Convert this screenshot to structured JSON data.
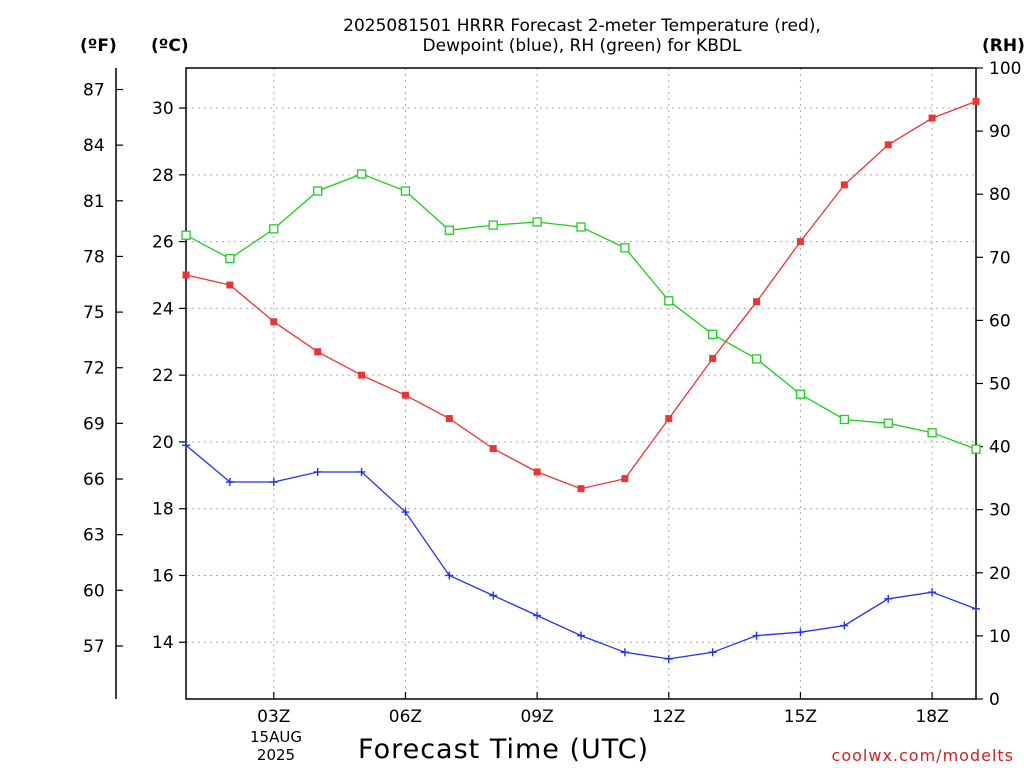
{
  "chart_data": {
    "type": "line",
    "title_line1": "2025081501 HRRR Forecast 2-meter Temperature (red),",
    "title_line2": "Dewpoint (blue), RH (green) for KBDL",
    "xlabel": "Forecast Time (UTC)",
    "date_day": "15AUG",
    "date_year": "2025",
    "credit": "coolwx.com/modelts",
    "units": {
      "f": "(ºF)",
      "c": "(ºC)",
      "rh": "(RH)"
    },
    "x_ticks": [
      {
        "hour": 3,
        "label": "03Z"
      },
      {
        "hour": 6,
        "label": "06Z"
      },
      {
        "hour": 9,
        "label": "09Z"
      },
      {
        "hour": 12,
        "label": "12Z"
      },
      {
        "hour": 15,
        "label": "15Z"
      },
      {
        "hour": 18,
        "label": "18Z"
      }
    ],
    "xlim": [
      1,
      19
    ],
    "ylim_c": [
      12.3,
      31.2
    ],
    "ylim_rh": [
      0,
      100
    ],
    "c_ticks": [
      14,
      16,
      18,
      20,
      22,
      24,
      26,
      28,
      30
    ],
    "f_ticks": [
      57,
      60,
      63,
      66,
      69,
      72,
      75,
      78,
      81,
      84,
      87
    ],
    "rh_ticks": [
      0,
      10,
      20,
      30,
      40,
      50,
      60,
      70,
      80,
      90,
      100
    ],
    "grid": true,
    "series": [
      {
        "color": "#ee3333",
        "marker": "square-filled",
        "axis": "c",
        "x": [
          1,
          2,
          3,
          4,
          5,
          6,
          7,
          8,
          9,
          10,
          11,
          12,
          13,
          14,
          15,
          16,
          17,
          18,
          19
        ],
        "values": [
          25.0,
          24.7,
          23.6,
          22.7,
          22.0,
          21.4,
          20.7,
          19.8,
          19.1,
          18.6,
          18.9,
          20.7,
          22.5,
          24.2,
          26.0,
          27.7,
          28.9,
          29.7,
          30.2
        ]
      },
      {
        "color": "#2233ee",
        "marker": "plus",
        "axis": "c",
        "x": [
          1,
          2,
          3,
          4,
          5,
          6,
          7,
          8,
          9,
          10,
          11,
          12,
          13,
          14,
          15,
          16,
          17,
          18,
          19
        ],
        "values": [
          19.9,
          18.8,
          18.8,
          19.1,
          19.1,
          17.9,
          16.0,
          15.4,
          14.8,
          14.2,
          13.7,
          13.5,
          13.7,
          14.2,
          14.3,
          14.5,
          15.3,
          15.5,
          15.0
        ]
      },
      {
        "color": "#22cc22",
        "marker": "square-open",
        "axis": "rh",
        "x": [
          1,
          2,
          3,
          4,
          5,
          6,
          7,
          8,
          9,
          10,
          11,
          12,
          13,
          14,
          15,
          16,
          17,
          18,
          19
        ],
        "values": [
          73.5,
          69.8,
          74.5,
          80.5,
          83.2,
          80.5,
          74.3,
          75.1,
          75.6,
          74.8,
          71.5,
          63.1,
          57.8,
          53.9,
          48.3,
          44.3,
          43.7,
          42.2,
          39.6
        ]
      }
    ]
  }
}
